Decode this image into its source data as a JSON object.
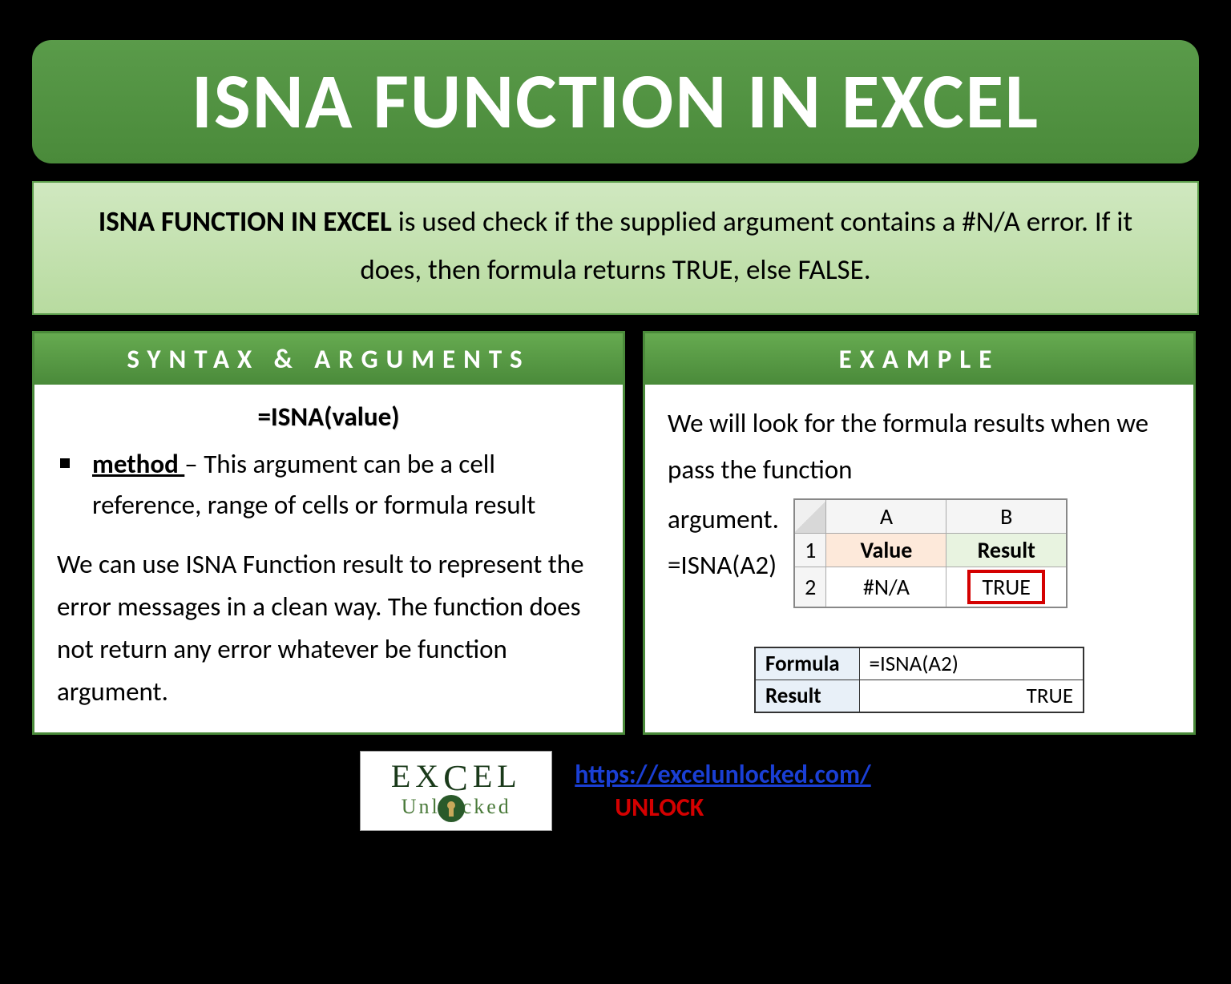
{
  "title": "ISNA FUNCTION IN EXCEL",
  "description": {
    "bold_lead": "ISNA FUNCTION IN EXCEL",
    "rest": " is used check if the supplied argument contains a #N/A error. If it does, then formula returns TRUE, else FALSE."
  },
  "left": {
    "header": "SYNTAX & ARGUMENTS",
    "formula": "=ISNA(value)",
    "method_label": "method ",
    "method_text": "– This argument can be a cell reference, range of cells or formula result",
    "paragraph": "We can use ISNA Function result to represent the error messages in a clean way. The function does not return any error whatever be function argument."
  },
  "right": {
    "header": "EXAMPLE",
    "intro": "We will look for the formula results when we pass the function",
    "argument_word": "argument.",
    "sample_formula": "=ISNA(A2)",
    "excel": {
      "col_a": "A",
      "col_b": "B",
      "row1": "1",
      "row2": "2",
      "header_a": "Value",
      "header_b": "Result",
      "cell_a2": "#N/A",
      "cell_b2": "TRUE"
    },
    "fr": {
      "formula_label": "Formula",
      "formula_val": "=ISNA(A2)",
      "result_label": "Result",
      "result_val": "TRUE"
    }
  },
  "footer": {
    "logo_top_1": "EX",
    "logo_top_2": "EL",
    "logo_bot_1": "Unl",
    "logo_bot_2": "cked",
    "url": "https://excelunlocked.com/",
    "unlock": "UNLOCK"
  }
}
